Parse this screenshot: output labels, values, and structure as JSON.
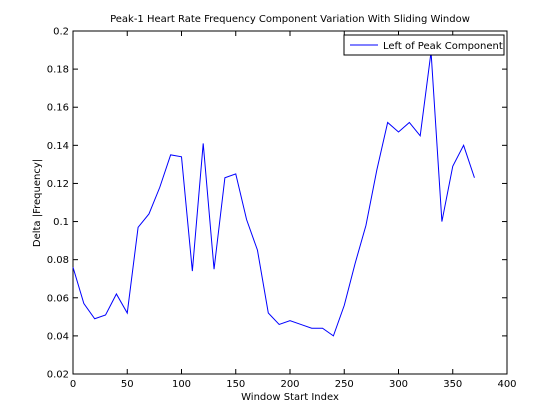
{
  "chart_data": {
    "type": "line",
    "title": "Peak-1 Heart Rate Frequency Component Variation With Sliding Window",
    "xlabel": "Window Start Index",
    "ylabel": "Delta |Frequency|",
    "xlim": [
      0,
      400
    ],
    "ylim": [
      0.02,
      0.2
    ],
    "xticks": [
      0,
      50,
      100,
      150,
      200,
      250,
      300,
      350,
      400
    ],
    "yticks": [
      0.02,
      0.04,
      0.06,
      0.08,
      0.1,
      0.12,
      0.14,
      0.16,
      0.18,
      0.2
    ],
    "xtick_labels": [
      "0",
      "50",
      "100",
      "150",
      "200",
      "250",
      "300",
      "350",
      "400"
    ],
    "ytick_labels": [
      "0.02",
      "0.04",
      "0.06",
      "0.08",
      "0.1",
      "0.12",
      "0.14",
      "0.16",
      "0.18",
      "0.2"
    ],
    "grid": false,
    "legend": "top-right",
    "series": [
      {
        "name": "Left of Peak Component",
        "color": "#0000ff",
        "x": [
          0,
          10,
          20,
          30,
          40,
          50,
          60,
          70,
          80,
          90,
          100,
          110,
          120,
          130,
          140,
          150,
          160,
          170,
          180,
          190,
          200,
          210,
          220,
          230,
          240,
          250,
          260,
          270,
          280,
          290,
          300,
          310,
          320,
          330,
          340,
          350,
          360,
          370
        ],
        "y": [
          0.076,
          0.057,
          0.049,
          0.051,
          0.062,
          0.052,
          0.097,
          0.104,
          0.118,
          0.135,
          0.134,
          0.074,
          0.141,
          0.075,
          0.123,
          0.125,
          0.101,
          0.085,
          0.052,
          0.046,
          0.048,
          0.046,
          0.044,
          0.044,
          0.04,
          0.056,
          0.078,
          0.098,
          0.127,
          0.152,
          0.147,
          0.152,
          0.145,
          0.189,
          0.1,
          0.129,
          0.14,
          0.123
        ]
      }
    ]
  }
}
